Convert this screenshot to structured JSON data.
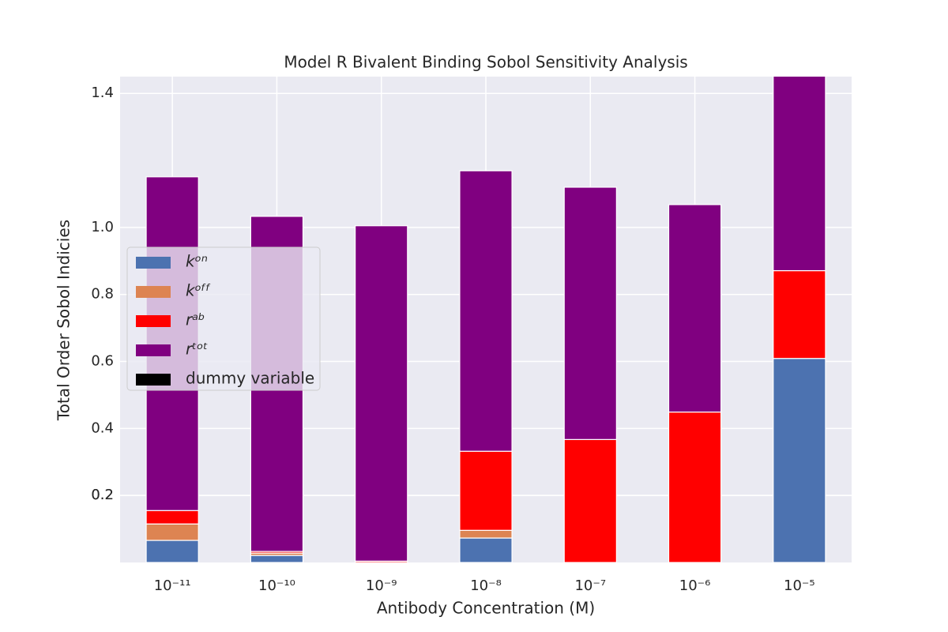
{
  "chart_data": {
    "type": "stacked-bar",
    "title": "Model R Bivalent Binding Sobol Sensitivity Analysis",
    "x_label": "Antibody Concentration (M)",
    "y_label": "Total Order Sobol Indicies",
    "categories": [
      "10⁻¹¹",
      "10⁻¹⁰",
      "10⁻⁹",
      "10⁻⁸",
      "10⁻⁷",
      "10⁻⁶",
      "10⁻⁵"
    ],
    "series": [
      {
        "name": "kᵒⁿ",
        "color": "#4c72b0",
        "values": [
          0.066,
          0.021,
          0,
          0.073,
          0,
          0,
          0.609
        ]
      },
      {
        "name": "kᵒᶠᶠ",
        "color": "#dd8452",
        "values": [
          0.049,
          0.007,
          0,
          0.023,
          0,
          0,
          0
        ]
      },
      {
        "name": "rᵃᵇ",
        "color": "#ff0000",
        "values": [
          0.04,
          0.005,
          0.004,
          0.236,
          0.367,
          0.449,
          0.262
        ]
      },
      {
        "name": "rᵗᵒᵗ",
        "color": "#800080",
        "values": [
          0.996,
          1.0,
          1.001,
          0.837,
          0.753,
          0.619,
          0.65
        ]
      },
      {
        "name": "dummy variable",
        "color": "#000000",
        "values": [
          0,
          0,
          0,
          0,
          0,
          0,
          0
        ]
      }
    ],
    "ylim": [
      0,
      1.45
    ],
    "yticks": [
      0.2,
      0.4,
      0.6,
      0.8,
      {
        "value": 1,
        "label": "1.0"
      },
      0.2,
      1.4
    ],
    "grid": true,
    "legend_position": "left"
  }
}
